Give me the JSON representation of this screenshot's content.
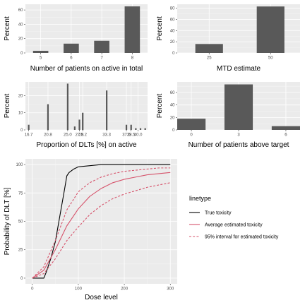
{
  "chart_data": [
    {
      "id": "p1",
      "type": "bar",
      "xlabel": "Number of patients on active in total",
      "ylabel": "Percent",
      "categories": [
        "5",
        "6",
        "7",
        "8"
      ],
      "values": [
        3,
        13,
        17,
        65
      ],
      "ylim": [
        0,
        68
      ],
      "yticks": [
        0,
        20,
        40,
        60
      ],
      "grid": true
    },
    {
      "id": "p2",
      "type": "bar",
      "xlabel": "MTD estimate",
      "ylabel": "Percent",
      "x": [
        25,
        50
      ],
      "values": [
        16,
        83
      ],
      "xlim": [
        12,
        62
      ],
      "xticks": [
        25,
        50
      ],
      "ylim": [
        0,
        87
      ],
      "yticks": [
        0,
        20,
        40,
        60,
        80
      ],
      "grid": true
    },
    {
      "id": "p3",
      "type": "bar",
      "xlabel": "Proportion of DLTs [%] on active",
      "ylabel": "Percent",
      "x": [
        16.7,
        20.8,
        25.0,
        26.5,
        27.5,
        28.2,
        33.3,
        37.5,
        38.5,
        39.5,
        40.5,
        41.5
      ],
      "values": [
        3,
        15,
        27,
        2,
        6,
        10,
        23,
        3,
        3,
        1,
        1,
        1
      ],
      "xticks": [
        16.7,
        20.8,
        25.0,
        27.5,
        28.2,
        33.3,
        37.5,
        38.5,
        40.0
      ],
      "xtick_labels": [
        "16.7",
        "20.8",
        "25.0",
        "27.5",
        "28.2",
        "33.3",
        "37.5",
        "38.5",
        "40.0"
      ],
      "xlim": [
        16.0,
        42.0
      ],
      "ylim": [
        0,
        28
      ],
      "yticks": [
        0,
        10,
        20
      ],
      "grid": true
    },
    {
      "id": "p4",
      "type": "bar",
      "xlabel": "Number of patients above target",
      "ylabel": "Percent",
      "x": [
        0,
        3,
        6
      ],
      "values": [
        18,
        73,
        6
      ],
      "xlim": [
        -0.9,
        6.9
      ],
      "xticks": [
        0,
        3,
        6
      ],
      "ylim": [
        0,
        77
      ],
      "yticks": [
        0,
        20,
        40,
        60
      ],
      "grid": true
    },
    {
      "id": "p5",
      "type": "line",
      "xlabel": "Dose level",
      "ylabel": "Probability of DLT [%]",
      "xlim": [
        -15,
        315
      ],
      "xticks": [
        0,
        100,
        200,
        300
      ],
      "ylim": [
        -5,
        105
      ],
      "yticks": [
        0,
        25,
        50,
        75,
        100
      ],
      "grid": true,
      "legend_title": "linetype",
      "legend_position": "right",
      "series": [
        {
          "name": "True toxicity",
          "color": "#000000",
          "dash": "solid",
          "x": [
            0,
            10,
            20,
            25,
            30,
            40,
            50,
            60,
            70,
            75,
            80,
            90,
            100,
            125,
            150,
            200,
            250,
            300
          ],
          "y": [
            0,
            0,
            0,
            0,
            5,
            17,
            32,
            55,
            78,
            90,
            93,
            96,
            98,
            99,
            100,
            100,
            100,
            100
          ]
        },
        {
          "name": "Average estimated toxicity",
          "color": "#d6536b",
          "dash": "solid",
          "x": [
            0,
            25,
            50,
            75,
            100,
            125,
            150,
            175,
            200,
            225,
            250,
            275,
            300
          ],
          "y": [
            0,
            7,
            25,
            46,
            61,
            72,
            79,
            84,
            87,
            89,
            91,
            92,
            93
          ]
        },
        {
          "name": "95% interval for estimated toxicity",
          "color": "#d6536b",
          "dash": "dashed",
          "x": [
            0,
            25,
            50,
            75,
            100,
            125,
            150,
            175,
            200,
            225,
            250,
            275,
            300
          ],
          "y": [
            0,
            10,
            33,
            60,
            76,
            84,
            89,
            92,
            94,
            95,
            96,
            97,
            97
          ]
        },
        {
          "name": "95% interval for estimated toxicity",
          "color": "#d6536b",
          "dash": "dashed",
          "x": [
            0,
            25,
            50,
            75,
            100,
            125,
            150,
            175,
            200,
            225,
            250,
            275,
            300
          ],
          "y": [
            0,
            4,
            17,
            33,
            45,
            56,
            64,
            70,
            74,
            77,
            80,
            82,
            84
          ]
        }
      ]
    }
  ]
}
